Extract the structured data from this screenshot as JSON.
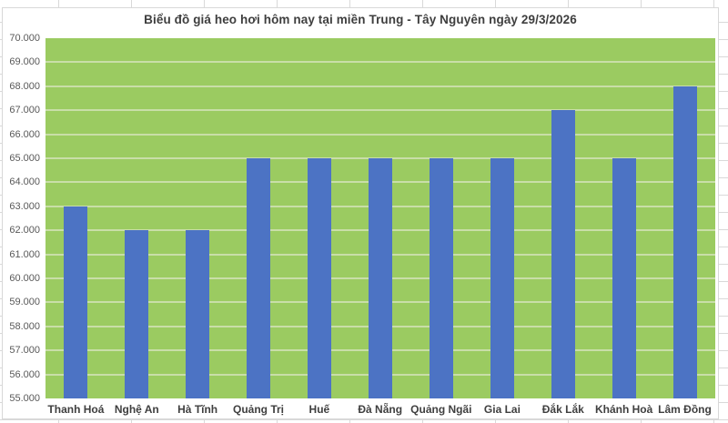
{
  "chart_data": {
    "type": "bar",
    "title": "Biểu đồ giá heo hơi hôm nay tại miền Trung - Tây Nguyên ngày 29/3/2026",
    "categories": [
      "Thanh Hoá",
      "Nghệ An",
      "Hà Tĩnh",
      "Quảng Trị",
      "Huế",
      "Đà Nẵng",
      "Quảng Ngãi",
      "Gia Lai",
      "Đắk Lắk",
      "Khánh Hoà",
      "Lâm Đồng"
    ],
    "values": [
      63000,
      62000,
      62000,
      65000,
      65000,
      65000,
      65000,
      65000,
      67000,
      65000,
      68000
    ],
    "ylim": [
      55000,
      70000
    ],
    "ytick_interval": 1000,
    "ytick_labels_top_to_bottom": [
      "70.000",
      "69.000",
      "68.000",
      "67.000",
      "66.000",
      "65.000",
      "64.000",
      "63.000",
      "62.000",
      "61.000",
      "60.000",
      "59.000",
      "58.000",
      "57.000",
      "56.000",
      "55.000"
    ],
    "xlabel": "",
    "ylabel": "",
    "legend": "none",
    "grid": "horizontal",
    "colors": {
      "bar": "#4C73C4",
      "plot_background": "#9BCB61",
      "gridline": "#C9DEA8",
      "title_text": "#3E3E3E",
      "axis_text": "#595959",
      "category_text": "#3F3F3F",
      "chart_border": "#D8D8D8",
      "page_background": "#FFFFFF"
    }
  }
}
